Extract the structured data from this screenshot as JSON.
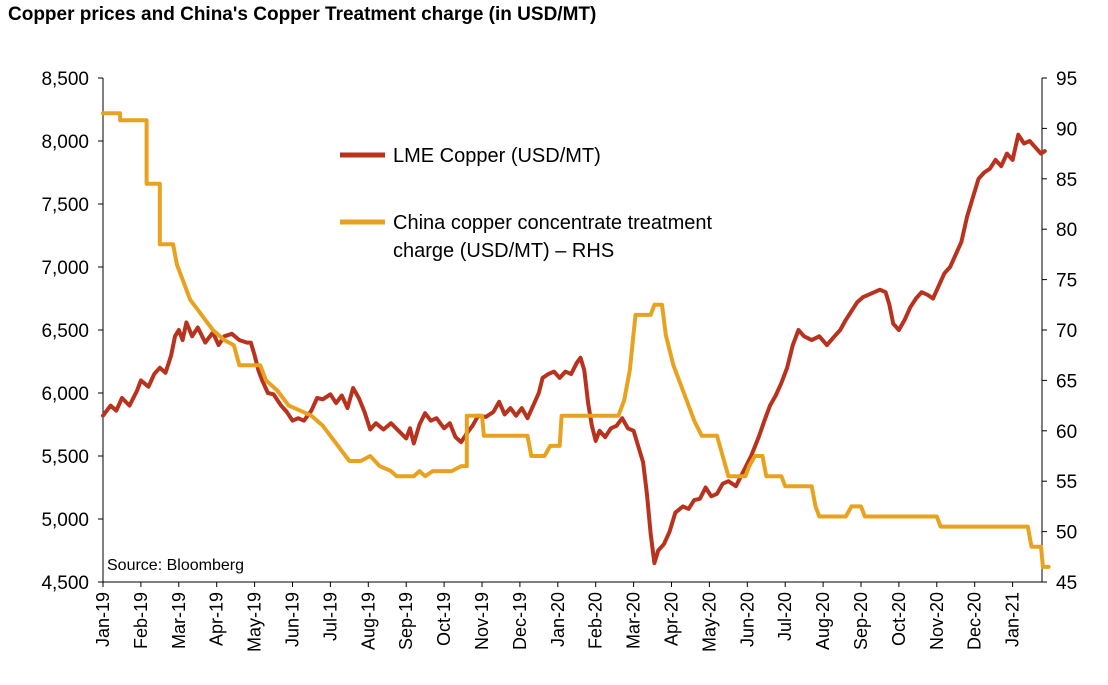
{
  "chart_data": {
    "type": "line",
    "title": "Copper prices and China's Copper Treatment charge (in USD/MT)",
    "source": "Source: Bloomberg",
    "colors": {
      "copper": "#B8321E",
      "tc": "#E8A21F",
      "axis": "#000000"
    },
    "legend_placement": "top-center",
    "grid": false,
    "y_left": {
      "min": 4500,
      "max": 8500,
      "ticks": [
        "4,500",
        "5,000",
        "5,500",
        "6,000",
        "6,500",
        "7,000",
        "7,500",
        "8,000",
        "8,500"
      ]
    },
    "y_right": {
      "min": 45,
      "max": 95,
      "ticks": [
        "45",
        "50",
        "55",
        "60",
        "65",
        "70",
        "75",
        "80",
        "85",
        "90",
        "95"
      ]
    },
    "x_ticks": [
      "Jan-19",
      "Feb-19",
      "Mar-19",
      "Apr-19",
      "May-19",
      "Jun-19",
      "Jul-19",
      "Aug-19",
      "Sep-19",
      "Oct-19",
      "Nov-19",
      "Dec-19",
      "Jan-20",
      "Feb-20",
      "Mar-20",
      "Apr-20",
      "May-20",
      "Jun-20",
      "Jul-20",
      "Aug-20",
      "Sep-20",
      "Oct-20",
      "Nov-20",
      "Dec-20",
      "Jan-21"
    ],
    "series": [
      {
        "name": "LME Copper (USD/MT)",
        "axis": "left",
        "points": [
          [
            0,
            5820
          ],
          [
            0.2,
            5900
          ],
          [
            0.35,
            5860
          ],
          [
            0.5,
            5960
          ],
          [
            0.7,
            5900
          ],
          [
            0.9,
            6020
          ],
          [
            1.0,
            6100
          ],
          [
            1.2,
            6050
          ],
          [
            1.35,
            6150
          ],
          [
            1.5,
            6200
          ],
          [
            1.65,
            6160
          ],
          [
            1.8,
            6300
          ],
          [
            1.9,
            6450
          ],
          [
            2.0,
            6500
          ],
          [
            2.1,
            6420
          ],
          [
            2.2,
            6560
          ],
          [
            2.35,
            6450
          ],
          [
            2.5,
            6520
          ],
          [
            2.7,
            6400
          ],
          [
            2.9,
            6480
          ],
          [
            3.05,
            6380
          ],
          [
            3.2,
            6450
          ],
          [
            3.4,
            6470
          ],
          [
            3.6,
            6420
          ],
          [
            3.8,
            6400
          ],
          [
            3.9,
            6400
          ],
          [
            4.0,
            6300
          ],
          [
            4.1,
            6180
          ],
          [
            4.2,
            6100
          ],
          [
            4.35,
            6000
          ],
          [
            4.5,
            5990
          ],
          [
            4.7,
            5900
          ],
          [
            4.85,
            5850
          ],
          [
            5.0,
            5780
          ],
          [
            5.15,
            5800
          ],
          [
            5.3,
            5780
          ],
          [
            5.5,
            5860
          ],
          [
            5.65,
            5960
          ],
          [
            5.8,
            5950
          ],
          [
            6.0,
            5990
          ],
          [
            6.15,
            5920
          ],
          [
            6.3,
            5980
          ],
          [
            6.45,
            5880
          ],
          [
            6.6,
            6040
          ],
          [
            6.75,
            5960
          ],
          [
            6.9,
            5850
          ],
          [
            7.05,
            5710
          ],
          [
            7.2,
            5760
          ],
          [
            7.4,
            5710
          ],
          [
            7.6,
            5760
          ],
          [
            7.8,
            5700
          ],
          [
            8.0,
            5640
          ],
          [
            8.1,
            5720
          ],
          [
            8.2,
            5600
          ],
          [
            8.35,
            5750
          ],
          [
            8.5,
            5840
          ],
          [
            8.65,
            5780
          ],
          [
            8.8,
            5800
          ],
          [
            9.0,
            5720
          ],
          [
            9.15,
            5760
          ],
          [
            9.3,
            5650
          ],
          [
            9.45,
            5610
          ],
          [
            9.6,
            5680
          ],
          [
            9.75,
            5740
          ],
          [
            9.9,
            5820
          ],
          [
            10.1,
            5810
          ],
          [
            10.3,
            5850
          ],
          [
            10.45,
            5930
          ],
          [
            10.6,
            5830
          ],
          [
            10.75,
            5880
          ],
          [
            10.9,
            5820
          ],
          [
            11.05,
            5880
          ],
          [
            11.2,
            5800
          ],
          [
            11.35,
            5900
          ],
          [
            11.5,
            6000
          ],
          [
            11.6,
            6120
          ],
          [
            11.75,
            6150
          ],
          [
            11.9,
            6170
          ],
          [
            12.05,
            6120
          ],
          [
            12.2,
            6170
          ],
          [
            12.35,
            6150
          ],
          [
            12.5,
            6240
          ],
          [
            12.6,
            6280
          ],
          [
            12.7,
            6180
          ],
          [
            12.8,
            5920
          ],
          [
            12.9,
            5740
          ],
          [
            13.0,
            5620
          ],
          [
            13.1,
            5700
          ],
          [
            13.25,
            5650
          ],
          [
            13.4,
            5720
          ],
          [
            13.55,
            5740
          ],
          [
            13.7,
            5800
          ],
          [
            13.85,
            5720
          ],
          [
            14.0,
            5700
          ],
          [
            14.1,
            5600
          ],
          [
            14.25,
            5450
          ],
          [
            14.35,
            5200
          ],
          [
            14.45,
            4880
          ],
          [
            14.55,
            4650
          ],
          [
            14.65,
            4750
          ],
          [
            14.8,
            4800
          ],
          [
            14.95,
            4900
          ],
          [
            15.1,
            5050
          ],
          [
            15.3,
            5100
          ],
          [
            15.45,
            5080
          ],
          [
            15.6,
            5150
          ],
          [
            15.75,
            5160
          ],
          [
            15.9,
            5250
          ],
          [
            16.05,
            5180
          ],
          [
            16.2,
            5200
          ],
          [
            16.35,
            5280
          ],
          [
            16.5,
            5300
          ],
          [
            16.7,
            5260
          ],
          [
            16.9,
            5380
          ],
          [
            17.1,
            5500
          ],
          [
            17.3,
            5650
          ],
          [
            17.45,
            5780
          ],
          [
            17.6,
            5900
          ],
          [
            17.75,
            5980
          ],
          [
            17.9,
            6080
          ],
          [
            18.05,
            6200
          ],
          [
            18.2,
            6380
          ],
          [
            18.35,
            6500
          ],
          [
            18.5,
            6450
          ],
          [
            18.7,
            6420
          ],
          [
            18.9,
            6450
          ],
          [
            19.1,
            6380
          ],
          [
            19.3,
            6450
          ],
          [
            19.45,
            6500
          ],
          [
            19.6,
            6580
          ],
          [
            19.75,
            6650
          ],
          [
            19.9,
            6720
          ],
          [
            20.05,
            6760
          ],
          [
            20.2,
            6780
          ],
          [
            20.35,
            6800
          ],
          [
            20.5,
            6820
          ],
          [
            20.65,
            6800
          ],
          [
            20.75,
            6700
          ],
          [
            20.85,
            6550
          ],
          [
            21.0,
            6500
          ],
          [
            21.15,
            6580
          ],
          [
            21.3,
            6680
          ],
          [
            21.45,
            6750
          ],
          [
            21.6,
            6800
          ],
          [
            21.75,
            6780
          ],
          [
            21.9,
            6750
          ],
          [
            22.05,
            6850
          ],
          [
            22.2,
            6950
          ],
          [
            22.35,
            7000
          ],
          [
            22.5,
            7100
          ],
          [
            22.65,
            7200
          ],
          [
            22.8,
            7400
          ],
          [
            22.95,
            7550
          ],
          [
            23.1,
            7700
          ],
          [
            23.25,
            7750
          ],
          [
            23.4,
            7780
          ],
          [
            23.55,
            7850
          ],
          [
            23.7,
            7800
          ],
          [
            23.85,
            7900
          ],
          [
            24.0,
            7850
          ],
          [
            24.15,
            8050
          ],
          [
            24.3,
            7980
          ],
          [
            24.45,
            8000
          ],
          [
            24.6,
            7950
          ],
          [
            24.75,
            7900
          ],
          [
            24.85,
            7920
          ]
        ]
      },
      {
        "name": "China copper concentrate treatment charge (USD/MT) – RHS",
        "axis": "right",
        "points": [
          [
            0,
            91.5
          ],
          [
            0.45,
            91.5
          ],
          [
            0.45,
            90.8
          ],
          [
            1.15,
            90.8
          ],
          [
            1.15,
            84.5
          ],
          [
            1.5,
            84.5
          ],
          [
            1.5,
            78.5
          ],
          [
            1.85,
            78.5
          ],
          [
            1.95,
            76.5
          ],
          [
            2.1,
            75
          ],
          [
            2.3,
            73
          ],
          [
            2.5,
            72
          ],
          [
            2.7,
            71
          ],
          [
            2.9,
            70
          ],
          [
            3.2,
            69
          ],
          [
            3.45,
            68.5
          ],
          [
            3.6,
            66.5
          ],
          [
            4.15,
            66.5
          ],
          [
            4.3,
            65
          ],
          [
            4.6,
            64
          ],
          [
            4.9,
            62.5
          ],
          [
            5.2,
            62
          ],
          [
            5.5,
            61.5
          ],
          [
            5.8,
            60.5
          ],
          [
            6.0,
            59.5
          ],
          [
            6.3,
            58
          ],
          [
            6.5,
            57
          ],
          [
            6.8,
            57
          ],
          [
            7.05,
            57.5
          ],
          [
            7.3,
            56.5
          ],
          [
            7.6,
            56
          ],
          [
            7.75,
            55.5
          ],
          [
            8.2,
            55.5
          ],
          [
            8.35,
            56
          ],
          [
            8.5,
            55.5
          ],
          [
            8.7,
            56
          ],
          [
            9.2,
            56
          ],
          [
            9.45,
            56.5
          ],
          [
            9.6,
            56.5
          ],
          [
            9.6,
            61.5
          ],
          [
            10.0,
            61.5
          ],
          [
            10.05,
            59.5
          ],
          [
            11.2,
            59.5
          ],
          [
            11.3,
            57.5
          ],
          [
            11.65,
            57.5
          ],
          [
            11.8,
            58.5
          ],
          [
            12.05,
            58.5
          ],
          [
            12.1,
            61.5
          ],
          [
            13.6,
            61.5
          ],
          [
            13.75,
            63
          ],
          [
            13.9,
            66
          ],
          [
            14.05,
            71.5
          ],
          [
            14.45,
            71.5
          ],
          [
            14.55,
            72.5
          ],
          [
            14.75,
            72.5
          ],
          [
            14.85,
            69.5
          ],
          [
            15.05,
            66.5
          ],
          [
            15.25,
            64.5
          ],
          [
            15.45,
            62.5
          ],
          [
            15.6,
            61
          ],
          [
            15.8,
            59.5
          ],
          [
            16.2,
            59.5
          ],
          [
            16.35,
            57.5
          ],
          [
            16.5,
            55.5
          ],
          [
            16.95,
            55.5
          ],
          [
            17.05,
            56.5
          ],
          [
            17.2,
            57.5
          ],
          [
            17.4,
            57.5
          ],
          [
            17.5,
            55.5
          ],
          [
            17.9,
            55.5
          ],
          [
            18.0,
            54.5
          ],
          [
            18.7,
            54.5
          ],
          [
            18.8,
            52.5
          ],
          [
            18.9,
            51.5
          ],
          [
            19.6,
            51.5
          ],
          [
            19.75,
            52.5
          ],
          [
            20.0,
            52.5
          ],
          [
            20.1,
            51.5
          ],
          [
            22.0,
            51.5
          ],
          [
            22.1,
            50.5
          ],
          [
            24.4,
            50.5
          ],
          [
            24.5,
            48.5
          ],
          [
            24.75,
            48.5
          ],
          [
            24.8,
            46.5
          ],
          [
            24.95,
            46.5
          ]
        ]
      }
    ]
  }
}
